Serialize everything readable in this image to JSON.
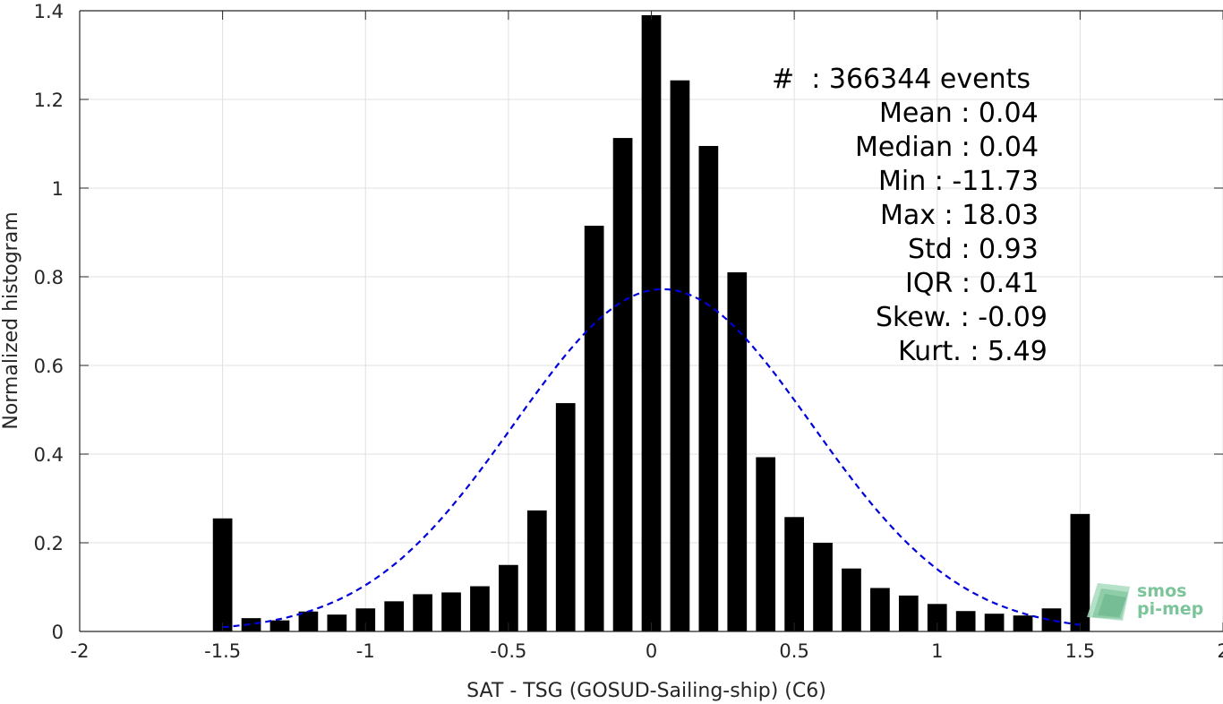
{
  "chart_data": {
    "type": "bar",
    "xlabel": "SAT - TSG (GOSUD-Sailing-ship) (C6)",
    "ylabel": "Normalized histogram",
    "xlim": [
      -2,
      2
    ],
    "ylim": [
      0,
      1.4
    ],
    "xticks": [
      "-2",
      "-1.5",
      "-1",
      "-0.5",
      "0",
      "0.5",
      "1",
      "1.5",
      "2"
    ],
    "yticks": [
      "0",
      "0.2",
      "0.4",
      "0.6",
      "0.8",
      "1",
      "1.2",
      "1.4"
    ],
    "grid": true,
    "bar_color": "#000000",
    "bin_width": 0.1,
    "bins": [
      {
        "x": -1.5,
        "y": 0.255
      },
      {
        "x": -1.4,
        "y": 0.03
      },
      {
        "x": -1.3,
        "y": 0.025
      },
      {
        "x": -1.2,
        "y": 0.045
      },
      {
        "x": -1.1,
        "y": 0.038
      },
      {
        "x": -1.0,
        "y": 0.052
      },
      {
        "x": -0.9,
        "y": 0.068
      },
      {
        "x": -0.8,
        "y": 0.084
      },
      {
        "x": -0.7,
        "y": 0.088
      },
      {
        "x": -0.6,
        "y": 0.102
      },
      {
        "x": -0.5,
        "y": 0.15
      },
      {
        "x": -0.4,
        "y": 0.273
      },
      {
        "x": -0.3,
        "y": 0.515
      },
      {
        "x": -0.2,
        "y": 0.915
      },
      {
        "x": -0.1,
        "y": 1.113
      },
      {
        "x": 0.0,
        "y": 1.39
      },
      {
        "x": 0.1,
        "y": 1.243
      },
      {
        "x": 0.2,
        "y": 1.095
      },
      {
        "x": 0.3,
        "y": 0.81
      },
      {
        "x": 0.4,
        "y": 0.393
      },
      {
        "x": 0.5,
        "y": 0.258
      },
      {
        "x": 0.6,
        "y": 0.2
      },
      {
        "x": 0.7,
        "y": 0.142
      },
      {
        "x": 0.8,
        "y": 0.098
      },
      {
        "x": 0.9,
        "y": 0.081
      },
      {
        "x": 1.0,
        "y": 0.062
      },
      {
        "x": 1.1,
        "y": 0.046
      },
      {
        "x": 1.2,
        "y": 0.04
      },
      {
        "x": 1.3,
        "y": 0.036
      },
      {
        "x": 1.4,
        "y": 0.052
      },
      {
        "x": 1.5,
        "y": 0.265
      }
    ],
    "fit_curve": {
      "style": "dashed",
      "color": "#0000dd",
      "mean": 0.04,
      "std": 0.52,
      "peak": 0.772,
      "x_range": [
        -1.5,
        1.5
      ]
    }
  },
  "stats": {
    "events": "#  : 366344 events",
    "mean": "Mean : 0.04",
    "median": "Median : 0.04",
    "min": "Min : -11.73",
    "max": "Max : 18.03",
    "std": "Std : 0.93",
    "iqr": "IQR : 0.41",
    "skew": "Skew. : -0.09",
    "kurt": "Kurt. : 5.49"
  },
  "logo": {
    "line1": "smos",
    "line2": "pi-mep",
    "color": "#7cc49a"
  }
}
